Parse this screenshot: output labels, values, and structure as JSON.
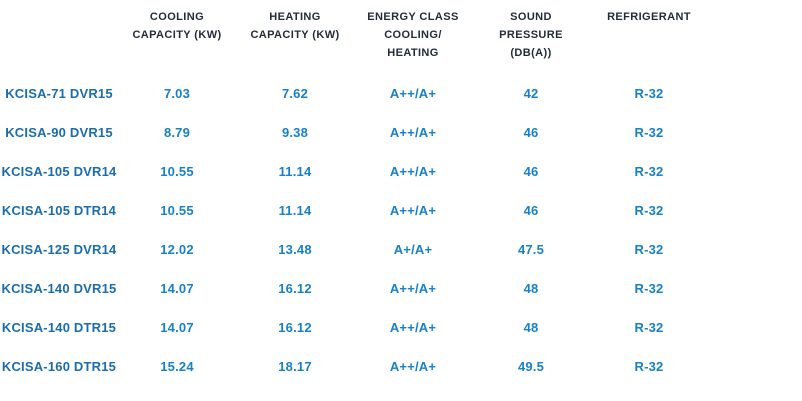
{
  "colors": {
    "header": "#232d3a",
    "model_label": "#1a6dae",
    "value": "#1781c9",
    "background": "#ffffff"
  },
  "table": {
    "columns": [
      {
        "id": "model",
        "lines": [
          "",
          "",
          ""
        ]
      },
      {
        "id": "cooling",
        "lines": [
          "COOLING",
          "CAPACITY (KW)",
          ""
        ]
      },
      {
        "id": "heating",
        "lines": [
          "HEATING",
          "CAPACITY (KW)",
          ""
        ]
      },
      {
        "id": "energy",
        "lines": [
          "ENERGY CLASS",
          "COOLING/",
          "HEATING"
        ]
      },
      {
        "id": "sound",
        "lines": [
          "SOUND",
          "PRESSURE",
          "(DB(A))"
        ]
      },
      {
        "id": "refrigerant",
        "lines": [
          "REFRIGERANT",
          "",
          ""
        ]
      }
    ],
    "rows": [
      {
        "model": "KCISA-71 DVR15",
        "cooling": "7.03",
        "heating": "7.62",
        "energy": "A++/A+",
        "sound": "42",
        "refrigerant": "R-32"
      },
      {
        "model": "KCISA-90 DVR15",
        "cooling": "8.79",
        "heating": "9.38",
        "energy": "A++/A+",
        "sound": "46",
        "refrigerant": "R-32"
      },
      {
        "model": "KCISA-105 DVR14",
        "cooling": "10.55",
        "heating": "11.14",
        "energy": "A++/A+",
        "sound": "46",
        "refrigerant": "R-32"
      },
      {
        "model": "KCISA-105 DTR14",
        "cooling": "10.55",
        "heating": "11.14",
        "energy": "A++/A+",
        "sound": "46",
        "refrigerant": "R-32"
      },
      {
        "model": "KCISA-125 DVR14",
        "cooling": "12.02",
        "heating": "13.48",
        "energy": "A+/A+",
        "sound": "47.5",
        "refrigerant": "R-32"
      },
      {
        "model": "KCISA-140 DVR15",
        "cooling": "14.07",
        "heating": "16.12",
        "energy": "A++/A+",
        "sound": "48",
        "refrigerant": "R-32"
      },
      {
        "model": "KCISA-140 DTR15",
        "cooling": "14.07",
        "heating": "16.12",
        "energy": "A++/A+",
        "sound": "48",
        "refrigerant": "R-32"
      },
      {
        "model": "KCISA-160 DTR15",
        "cooling": "15.24",
        "heating": "18.17",
        "energy": "A++/A+",
        "sound": "49.5",
        "refrigerant": "R-32"
      }
    ]
  }
}
